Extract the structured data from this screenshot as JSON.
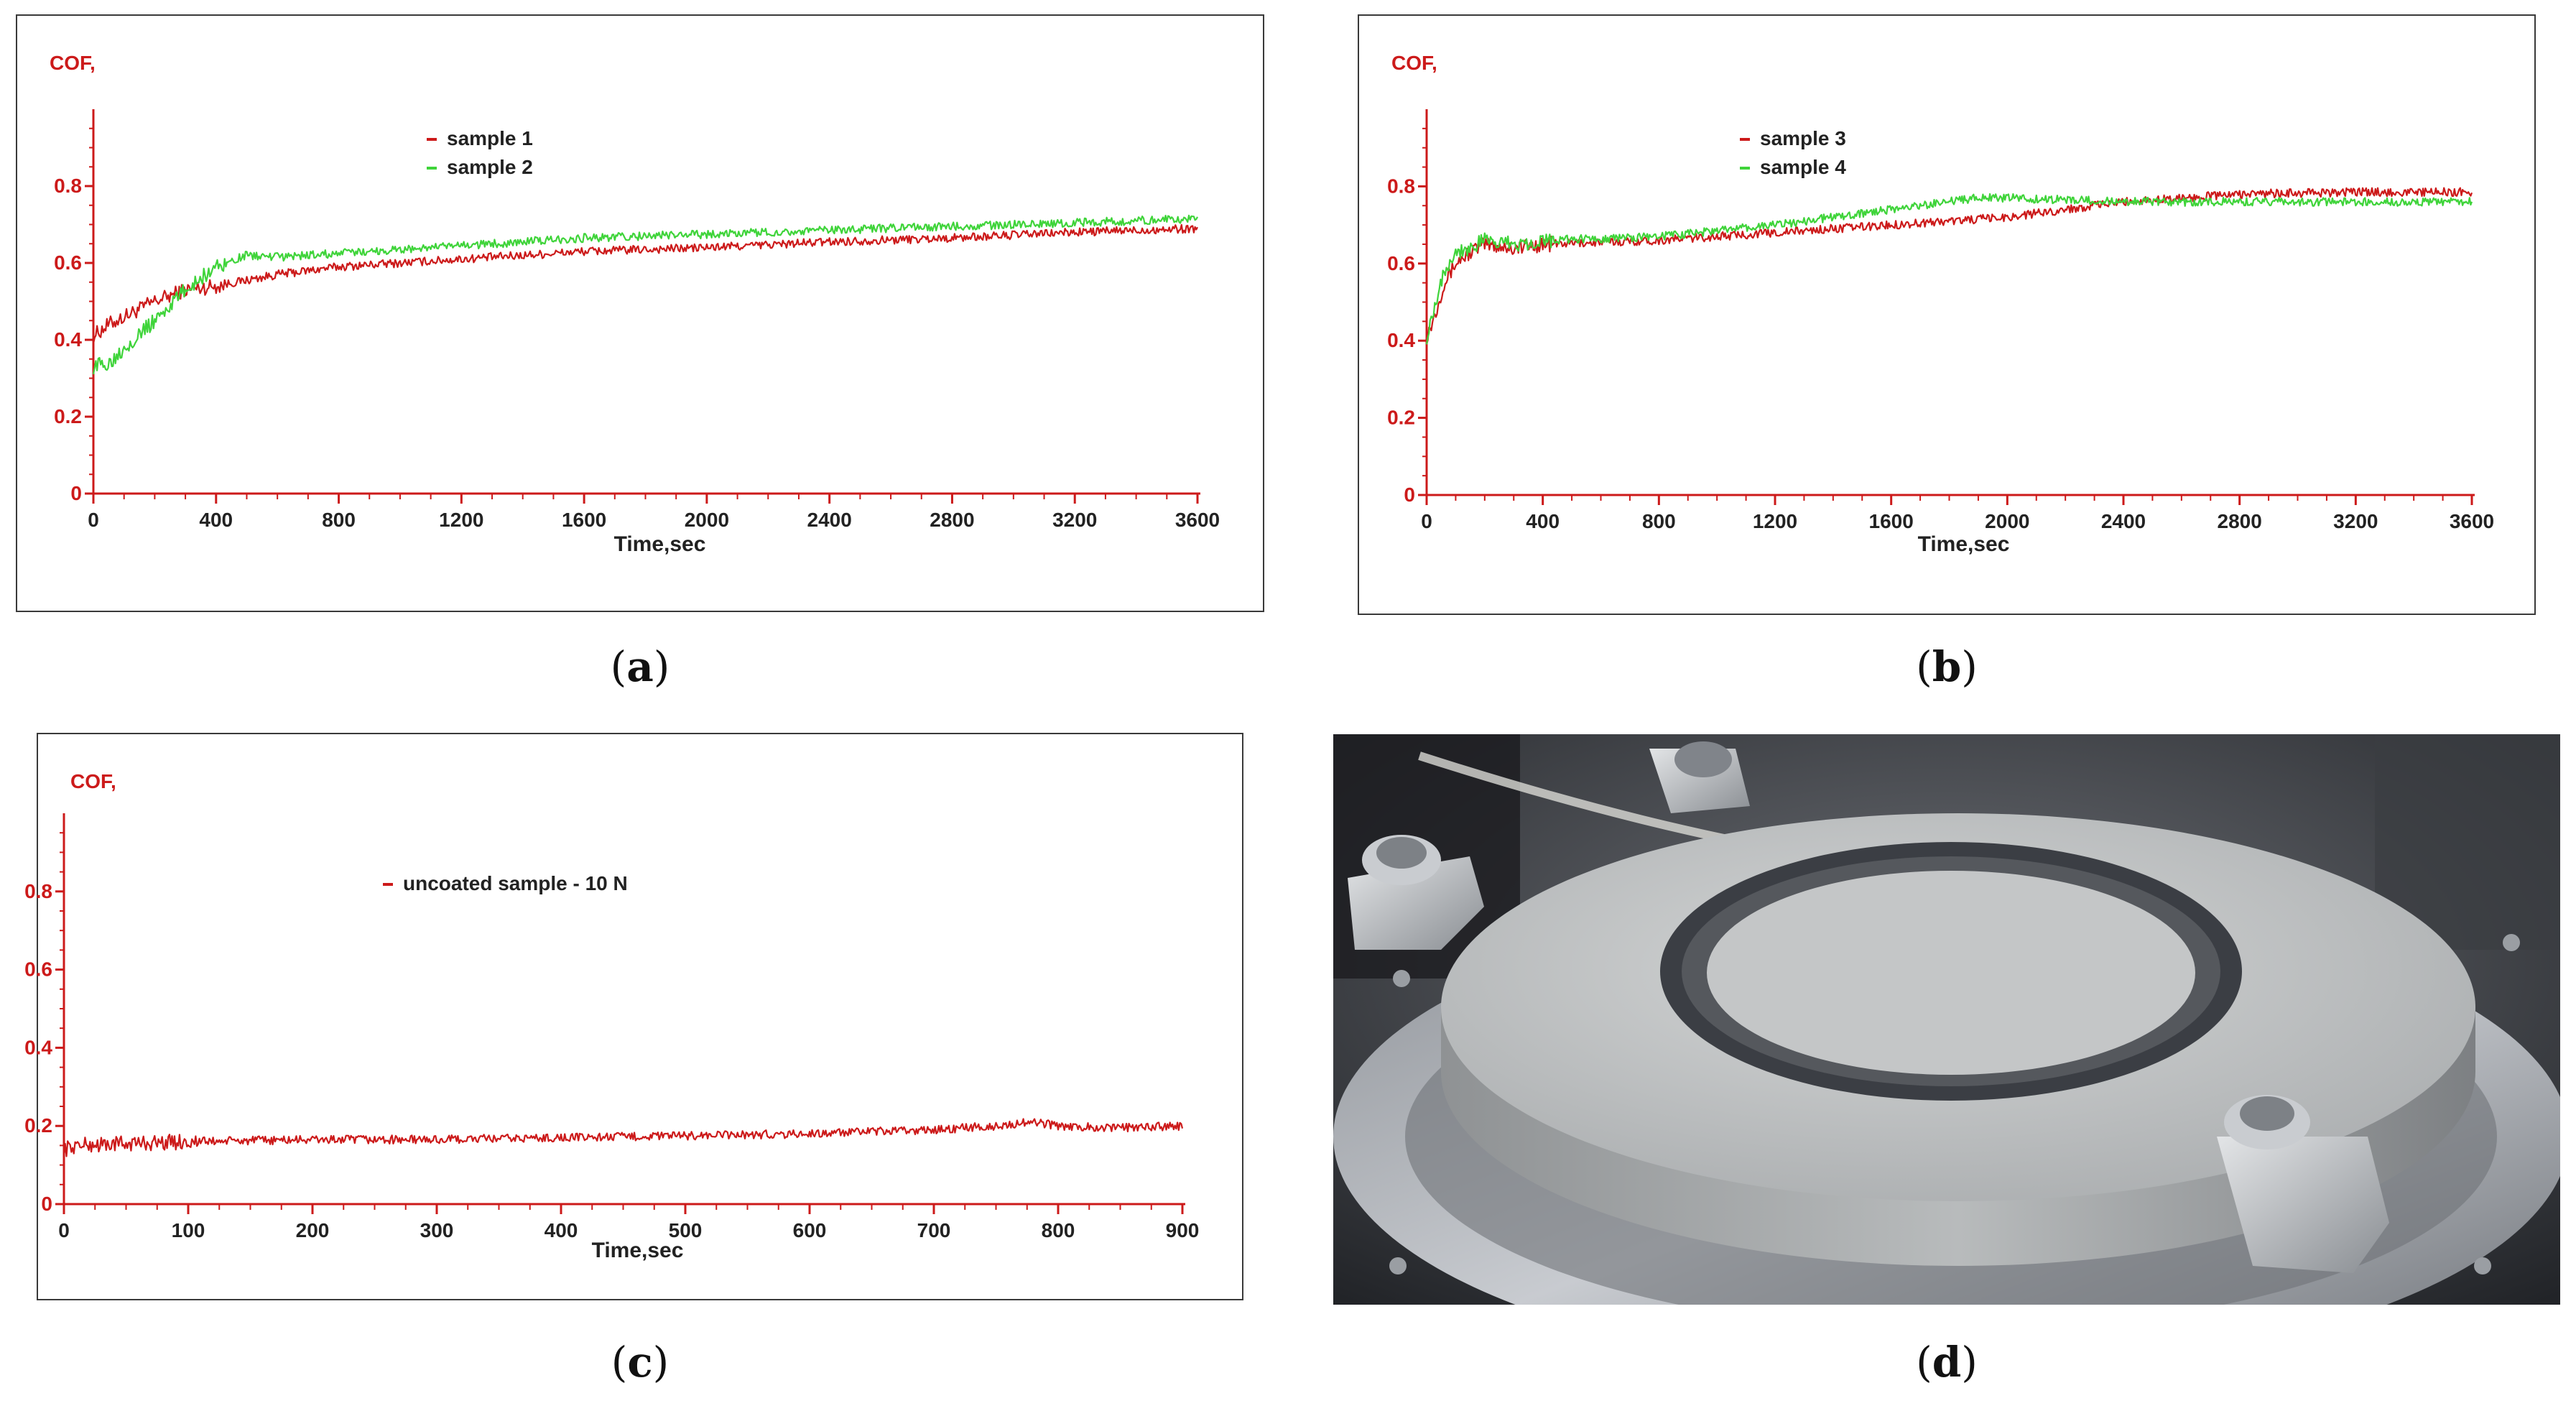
{
  "colors": {
    "red": "#cc1a1a",
    "green": "#3fd43a",
    "axis": "#cc1a1a",
    "tick_text": "#222222"
  },
  "chart_data": [
    {
      "id": "a",
      "type": "line",
      "caption": "a",
      "ylabel": "COF,",
      "xlabel": "Time,sec",
      "xlim": [
        0,
        3600
      ],
      "ylim": [
        0,
        1.0
      ],
      "xticks": [
        0,
        400,
        800,
        1200,
        1600,
        2000,
        2400,
        2800,
        3200,
        3600
      ],
      "yticks": [
        0,
        0.2,
        0.4,
        0.6,
        0.8
      ],
      "ytick_labels": [
        "0",
        "0.2",
        "0.4",
        "0.6",
        "0.8"
      ],
      "grid": false,
      "legend_position": "top-center",
      "series": [
        {
          "name": "sample 1",
          "color": "#cc1a1a",
          "x": [
            0,
            50,
            100,
            200,
            300,
            400,
            600,
            800,
            1200,
            1600,
            2000,
            2400,
            2800,
            3200,
            3600
          ],
          "y": [
            0.41,
            0.44,
            0.46,
            0.5,
            0.53,
            0.54,
            0.57,
            0.59,
            0.61,
            0.63,
            0.64,
            0.655,
            0.665,
            0.68,
            0.69
          ]
        },
        {
          "name": "sample 2",
          "color": "#3fd43a",
          "x": [
            0,
            50,
            100,
            200,
            300,
            400,
            500,
            600,
            800,
            1200,
            1600,
            2000,
            2400,
            2800,
            3200,
            3600
          ],
          "y": [
            0.33,
            0.34,
            0.38,
            0.45,
            0.53,
            0.59,
            0.62,
            0.615,
            0.625,
            0.645,
            0.665,
            0.675,
            0.685,
            0.695,
            0.705,
            0.715
          ]
        }
      ]
    },
    {
      "id": "b",
      "type": "line",
      "caption": "b",
      "ylabel": "COF,",
      "xlabel": "Time,sec",
      "xlim": [
        0,
        3600
      ],
      "ylim": [
        0,
        1.0
      ],
      "xticks": [
        0,
        400,
        800,
        1200,
        1600,
        2000,
        2400,
        2800,
        3200,
        3600
      ],
      "yticks": [
        0,
        0.2,
        0.4,
        0.6,
        0.8
      ],
      "ytick_labels": [
        "0",
        "0.2",
        "0.4",
        "0.6",
        "0.8"
      ],
      "grid": false,
      "legend_position": "top-center",
      "series": [
        {
          "name": "sample 3",
          "color": "#cc1a1a",
          "x": [
            0,
            30,
            60,
            100,
            150,
            200,
            300,
            400,
            800,
            1200,
            1600,
            2000,
            2400,
            2800,
            3200,
            3600
          ],
          "y": [
            0.41,
            0.47,
            0.55,
            0.6,
            0.63,
            0.65,
            0.64,
            0.65,
            0.66,
            0.68,
            0.7,
            0.72,
            0.76,
            0.78,
            0.785,
            0.785
          ]
        },
        {
          "name": "sample 4",
          "color": "#3fd43a",
          "x": [
            0,
            30,
            60,
            100,
            150,
            200,
            300,
            400,
            800,
            1200,
            1600,
            1900,
            2000,
            2400,
            2800,
            3200,
            3600
          ],
          "y": [
            0.41,
            0.5,
            0.58,
            0.63,
            0.64,
            0.66,
            0.65,
            0.66,
            0.67,
            0.7,
            0.74,
            0.77,
            0.77,
            0.76,
            0.76,
            0.76,
            0.76
          ]
        }
      ]
    },
    {
      "id": "c",
      "type": "line",
      "caption": "c",
      "ylabel": "COF,",
      "xlabel": "Time,sec",
      "xlim": [
        0,
        900
      ],
      "ylim": [
        0,
        1.0
      ],
      "xticks": [
        0,
        100,
        200,
        300,
        400,
        500,
        600,
        700,
        800,
        900
      ],
      "yticks": [
        0,
        0.2,
        0.4,
        0.6,
        0.8
      ],
      "ytick_labels": [
        "0",
        "0.2",
        "0.4",
        "0.6",
        "0.8"
      ],
      "grid": false,
      "legend_position": "top-center",
      "series": [
        {
          "name": "uncoated sample - 10 N",
          "color": "#cc1a1a",
          "x": [
            0,
            10,
            50,
            100,
            200,
            300,
            400,
            500,
            600,
            700,
            750,
            780,
            800,
            850,
            900
          ],
          "y": [
            0.14,
            0.15,
            0.155,
            0.16,
            0.165,
            0.165,
            0.17,
            0.175,
            0.18,
            0.19,
            0.2,
            0.21,
            0.2,
            0.195,
            0.2
          ]
        }
      ]
    }
  ],
  "photo": {
    "caption": "d"
  }
}
